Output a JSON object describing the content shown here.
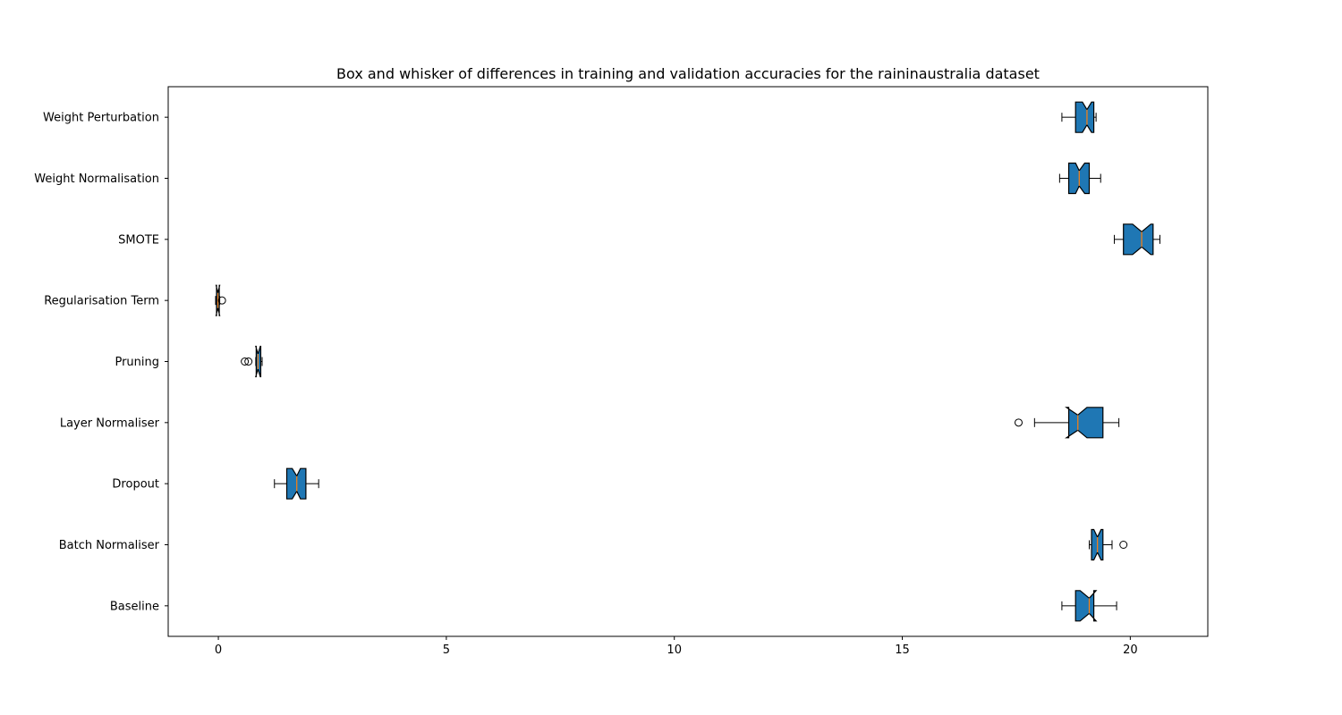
{
  "chart_data": {
    "type": "boxplot",
    "orientation": "horizontal",
    "notched": true,
    "title": "Box and whisker of differences in training and validation accuracies for the raininaustralia dataset",
    "xlabel": "",
    "ylabel": "",
    "xlim": [
      -1.1,
      21.7
    ],
    "xticks": [
      0,
      5,
      10,
      15,
      20
    ],
    "grid": false,
    "box_color": "#1f77b4",
    "median_color": "#ff7f0e",
    "categories": [
      "Baseline",
      "Batch Normaliser",
      "Dropout",
      "Layer Normaliser",
      "Pruning",
      "Regularisation Term",
      "SMOTE",
      "Weight Normalisation",
      "Weight Perturbation"
    ],
    "series": [
      {
        "category": "Baseline",
        "whislo": 18.5,
        "q1": 18.8,
        "med": 19.1,
        "q3": 19.2,
        "whishi": 19.7,
        "notch": [
          18.9,
          19.25
        ],
        "fliers": []
      },
      {
        "category": "Batch Normaliser",
        "whislo": 19.1,
        "q1": 19.15,
        "med": 19.28,
        "q3": 19.4,
        "whishi": 19.6,
        "notch": [
          19.2,
          19.36
        ],
        "fliers": [
          19.85
        ]
      },
      {
        "category": "Dropout",
        "whislo": 1.23,
        "q1": 1.5,
        "med": 1.72,
        "q3": 1.92,
        "whishi": 2.2,
        "notch": [
          1.62,
          1.8
        ],
        "fliers": []
      },
      {
        "category": "Layer Normaliser",
        "whislo": 17.9,
        "q1": 18.65,
        "med": 18.85,
        "q3": 19.4,
        "whishi": 19.75,
        "notch": [
          18.6,
          19.05
        ],
        "fliers": [
          17.55
        ]
      },
      {
        "category": "Pruning",
        "whislo": 0.82,
        "q1": 0.83,
        "med": 0.87,
        "q3": 0.93,
        "whishi": 0.96,
        "notch": [
          0.82,
          0.92
        ],
        "fliers": [
          0.58,
          0.66
        ]
      },
      {
        "category": "Regularisation Term",
        "whislo": -0.06,
        "q1": -0.04,
        "med": -0.01,
        "q3": 0.02,
        "whishi": 0.03,
        "notch": [
          -0.05,
          0.03
        ],
        "fliers": [
          0.08
        ]
      },
      {
        "category": "SMOTE",
        "whislo": 19.65,
        "q1": 19.85,
        "med": 20.25,
        "q3": 20.5,
        "whishi": 20.65,
        "notch": [
          20.05,
          20.45
        ],
        "fliers": []
      },
      {
        "category": "Weight Normalisation",
        "whislo": 18.45,
        "q1": 18.65,
        "med": 18.88,
        "q3": 19.1,
        "whishi": 19.35,
        "notch": [
          18.8,
          19.0
        ],
        "fliers": []
      },
      {
        "category": "Weight Perturbation",
        "whislo": 18.5,
        "q1": 18.8,
        "med": 19.05,
        "q3": 19.2,
        "whishi": 19.25,
        "notch": [
          18.95,
          19.15
        ],
        "fliers": []
      }
    ]
  }
}
